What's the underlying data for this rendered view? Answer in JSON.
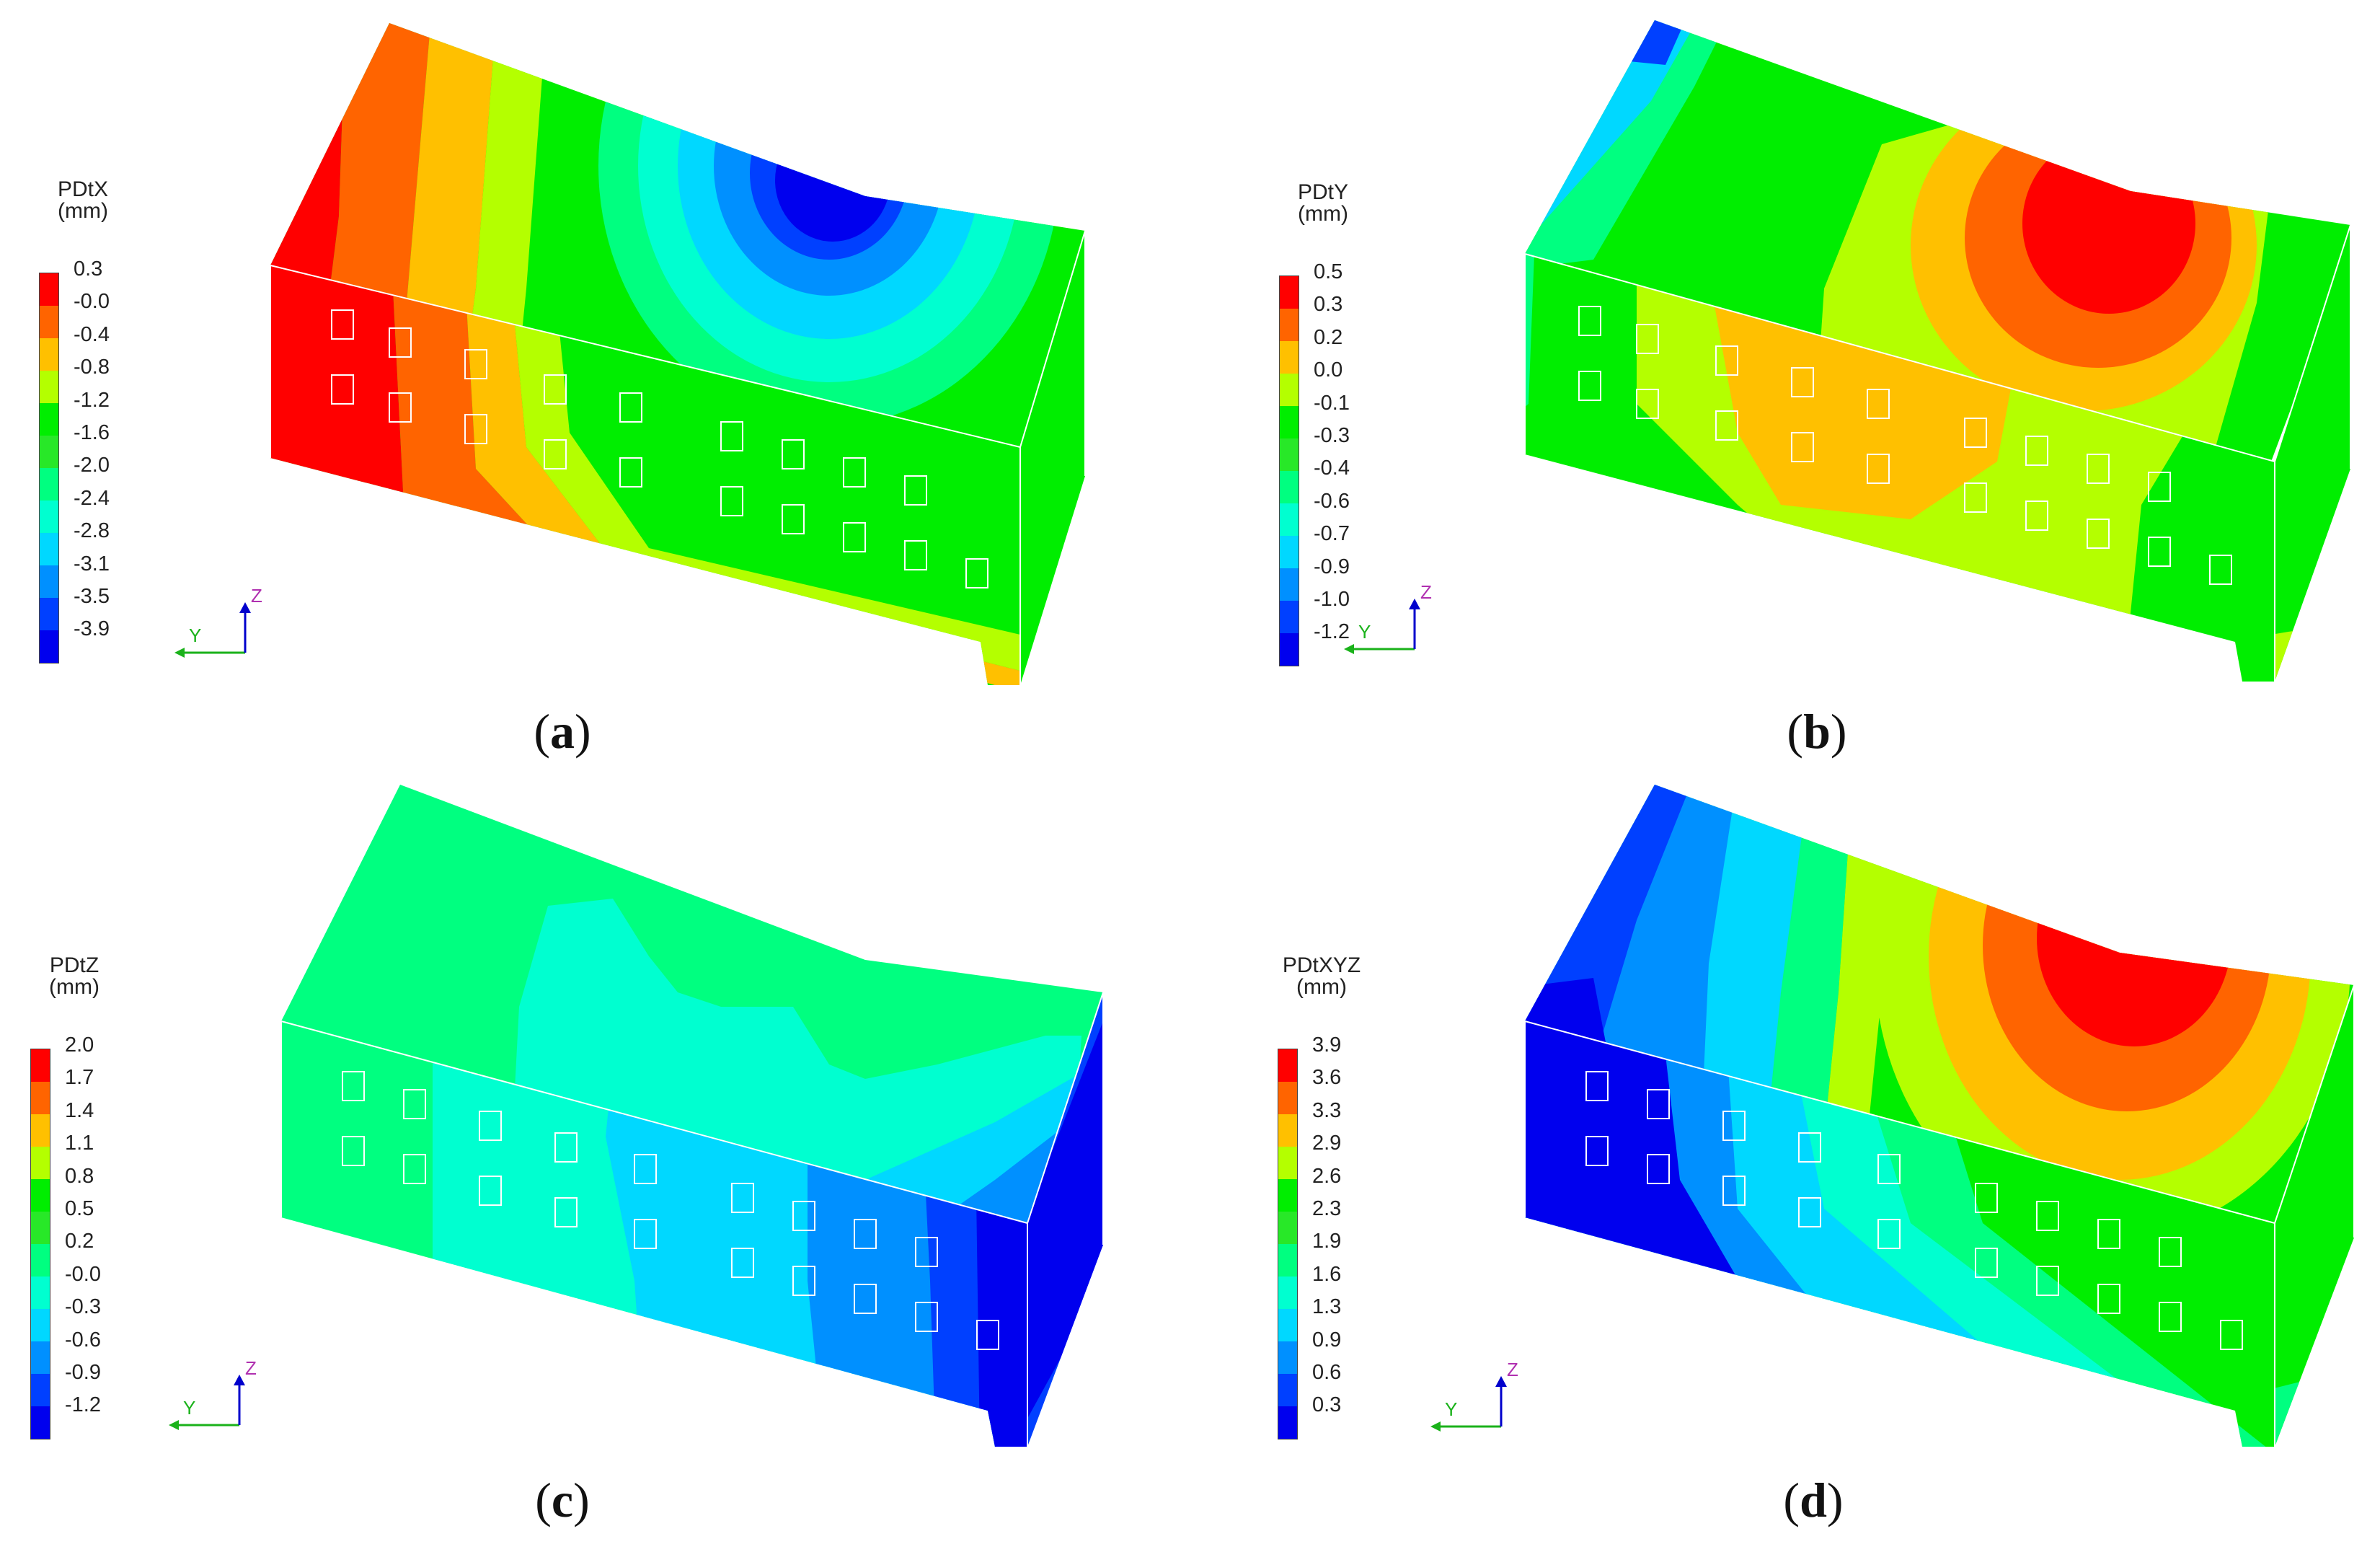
{
  "panels": [
    {
      "id": "a",
      "caption": "a",
      "legend_title": "PDtX",
      "legend_unit": "(mm)",
      "legend_values": [
        "0.3",
        "-0.0",
        "-0.4",
        "-0.8",
        "-1.2",
        "-1.6",
        "-2.0",
        "-2.4",
        "-2.8",
        "-3.1",
        "-3.5",
        "-3.9"
      ],
      "axis_y": "Y",
      "axis_z": "Z"
    },
    {
      "id": "b",
      "caption": "b",
      "legend_title": "PDtY",
      "legend_unit": "(mm)",
      "legend_values": [
        "0.5",
        "0.3",
        "0.2",
        "0.0",
        "-0.1",
        "-0.3",
        "-0.4",
        "-0.6",
        "-0.7",
        "-0.9",
        "-1.0",
        "-1.2"
      ],
      "axis_y": "Y",
      "axis_z": "Z"
    },
    {
      "id": "c",
      "caption": "c",
      "legend_title": "PDtZ",
      "legend_unit": "(mm)",
      "legend_values": [
        "2.0",
        "1.7",
        "1.4",
        "1.1",
        "0.8",
        "0.5",
        "0.2",
        "-0.0",
        "-0.3",
        "-0.6",
        "-0.9",
        "-1.2"
      ],
      "axis_y": "Y",
      "axis_z": "Z"
    },
    {
      "id": "d",
      "caption": "d",
      "legend_title": "PDtXYZ",
      "legend_unit": "(mm)",
      "legend_values": [
        "3.9",
        "3.6",
        "3.3",
        "2.9",
        "2.6",
        "2.3",
        "1.9",
        "1.6",
        "1.3",
        "0.9",
        "0.6",
        "0.3"
      ],
      "axis_y": "Y",
      "axis_z": "Z"
    }
  ],
  "colors": {
    "scale": [
      "#ff0000",
      "#ff6400",
      "#ffc000",
      "#b4ff00",
      "#00ee00",
      "#28e828",
      "#00ff80",
      "#00ffd0",
      "#00d8ff",
      "#0090ff",
      "#0040ff",
      "#0000ee"
    ],
    "axis_y": "#1ab21a",
    "axis_z": "#0000cc",
    "axis_z_label": "#b030b0",
    "outline": "#ffffff"
  }
}
